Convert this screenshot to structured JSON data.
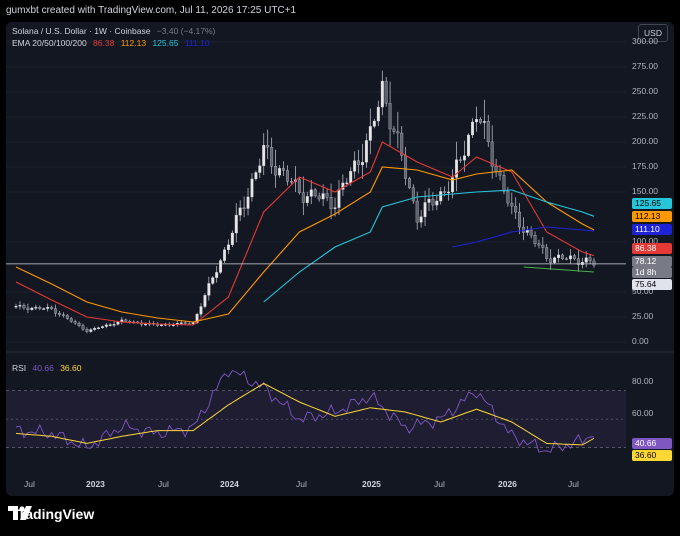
{
  "header": {
    "credit": "gumxbt created with TradingView.com, Jul 11, 2026 17:25 UTC+1"
  },
  "legend": {
    "symbol": "Solana / U.S. Dollar · 1W · Coinbase",
    "change": "−3.40 (−4.17%)",
    "ema_label": "EMA 20/50/100/200",
    "ema20": "86.38",
    "ema50": "112.13",
    "ema100": "125.65",
    "ema200": "111.10"
  },
  "currency": "USD",
  "price_axis": [
    "300.00",
    "275.00",
    "250.00",
    "225.00",
    "200.00",
    "175.00",
    "150.00",
    "100.00",
    "50.00",
    "25.00",
    "0.00"
  ],
  "badges": {
    "ema100": {
      "text": "125.65",
      "color": "#26c6da"
    },
    "ema50": {
      "text": "112.13",
      "color": "#ff9800"
    },
    "ema200": {
      "text": "111.10",
      "color": "#1e22d6"
    },
    "ema20": {
      "text": "86.38",
      "color": "#e53935"
    },
    "last_price": "78.12",
    "countdown": "1d 8h",
    "crosshair": "75.64"
  },
  "rsi": {
    "label": "RSI",
    "value": "40.66",
    "ma": "36.60",
    "axis": [
      "80.00",
      "60.00"
    ],
    "value_color": "#7e57c2",
    "ma_color": "#fdd835"
  },
  "time_axis": [
    {
      "label": "Jul",
      "bold": false
    },
    {
      "label": "2023",
      "bold": true
    },
    {
      "label": "Jul",
      "bold": false
    },
    {
      "label": "2024",
      "bold": true
    },
    {
      "label": "Jul",
      "bold": false
    },
    {
      "label": "2025",
      "bold": true
    },
    {
      "label": "Jul",
      "bold": false
    },
    {
      "label": "2026",
      "bold": true
    },
    {
      "label": "Jul",
      "bold": false
    }
  ],
  "footer": {
    "brand": "TradingView"
  },
  "chart_data": {
    "type": "candlestick",
    "title": "Solana / U.S. Dollar · 1W · Coinbase",
    "ylim": [
      0,
      300
    ],
    "x": [
      "2022-06",
      "2022-09",
      "2022-12",
      "2023-03",
      "2023-06",
      "2023-09",
      "2023-12",
      "2024-03",
      "2024-06",
      "2024-09",
      "2024-12",
      "2025-01",
      "2025-04",
      "2025-07",
      "2025-09",
      "2025-12",
      "2026-03",
      "2026-06",
      "2026-07"
    ],
    "close": [
      35,
      33,
      11,
      21,
      17,
      19,
      100,
      190,
      150,
      140,
      205,
      255,
      125,
      160,
      230,
      130,
      85,
      82,
      78.12
    ],
    "series": [
      {
        "name": "EMA 20",
        "values": [
          60,
          42,
          25,
          20,
          18,
          17,
          45,
          130,
          165,
          150,
          170,
          200,
          180,
          165,
          185,
          170,
          110,
          90,
          86.38
        ]
      },
      {
        "name": "EMA 50",
        "values": [
          75,
          58,
          40,
          30,
          24,
          20,
          28,
          70,
          110,
          128,
          150,
          175,
          172,
          162,
          168,
          172,
          140,
          118,
          112.13
        ]
      },
      {
        "name": "EMA 100",
        "values": [
          null,
          null,
          null,
          null,
          null,
          null,
          null,
          40,
          70,
          95,
          110,
          135,
          145,
          148,
          150,
          152,
          140,
          130,
          125.65
        ]
      },
      {
        "name": "EMA 200",
        "values": [
          null,
          null,
          null,
          null,
          null,
          null,
          null,
          null,
          null,
          null,
          null,
          null,
          null,
          95,
          100,
          110,
          115,
          112,
          111.1
        ]
      }
    ],
    "rsi": {
      "ylim": [
        20,
        90
      ],
      "x": [
        "2022-06",
        "2022-09",
        "2022-12",
        "2023-03",
        "2023-06",
        "2023-09",
        "2023-12",
        "2024-03",
        "2024-06",
        "2024-09",
        "2024-12",
        "2025-03",
        "2025-06",
        "2025-09",
        "2025-12",
        "2026-03",
        "2026-06",
        "2026-07"
      ],
      "rsi": [
        42,
        40,
        30,
        45,
        40,
        44,
        85,
        72,
        50,
        55,
        66,
        44,
        50,
        70,
        38,
        28,
        35,
        40.66
      ],
      "ma": [
        40,
        38,
        33,
        38,
        42,
        42,
        60,
        75,
        62,
        52,
        58,
        55,
        48,
        57,
        48,
        33,
        32,
        36.6
      ],
      "levels": [
        70,
        30
      ]
    }
  }
}
